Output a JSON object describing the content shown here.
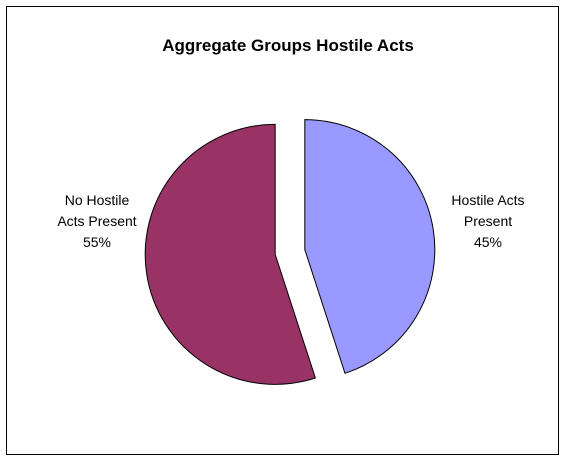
{
  "chart_data": {
    "type": "pie",
    "title": "Aggregate Groups Hostile Acts",
    "exploded": true,
    "legend": "none",
    "slices": [
      {
        "label_lines": [
          "Hostile Acts",
          "Present",
          "45%"
        ],
        "value": 45,
        "color": "#9999ff"
      },
      {
        "label_lines": [
          "No Hostile",
          "Acts Present",
          "55%"
        ],
        "value": 55,
        "color": "#993366"
      }
    ]
  }
}
